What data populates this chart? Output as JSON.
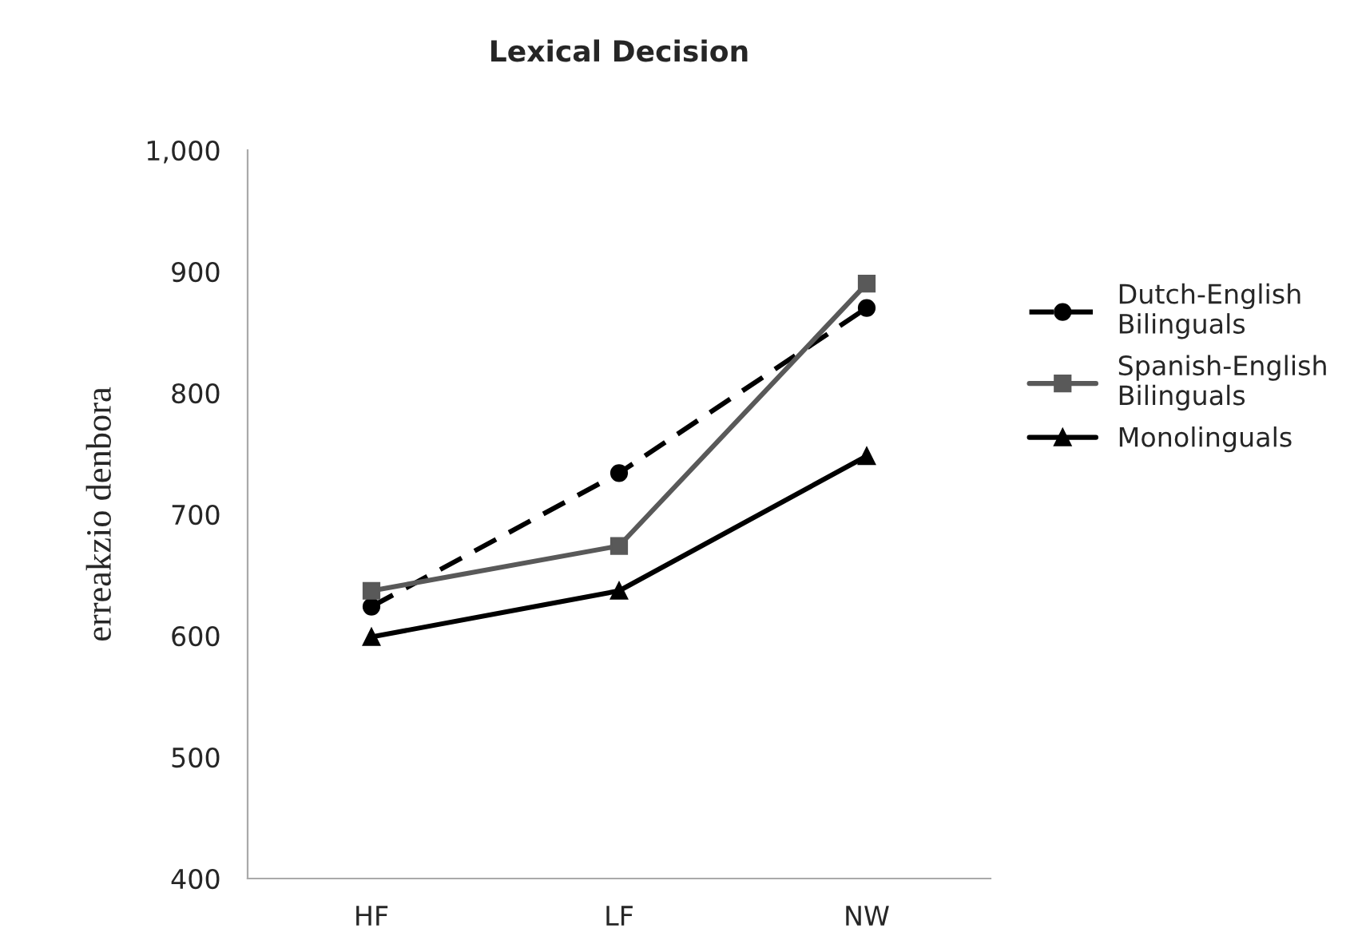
{
  "chart_data": {
    "type": "line",
    "title": "Lexical Decision",
    "ylabel": "erreakzio denbora",
    "categories": [
      "HF",
      "LF",
      "NW"
    ],
    "series": [
      {
        "name": "Dutch-English\nBilinguals",
        "color": "#000000",
        "values": [
          624,
          734,
          870
        ],
        "marker": "circle",
        "line_style": "dashed"
      },
      {
        "name": "Spanish-English\nBilinguals",
        "color": "#595959",
        "values": [
          637,
          674,
          890
        ],
        "marker": "square",
        "line_style": "solid"
      },
      {
        "name": "Monolinguals",
        "color": "#000000",
        "values": [
          599,
          637,
          748
        ],
        "marker": "triangle",
        "line_style": "solid"
      }
    ],
    "ylim": [
      400,
      1000
    ],
    "yticks": [
      400,
      500,
      600,
      700,
      800,
      900,
      {
        "value": 1000,
        "label": "1,000"
      }
    ],
    "grid": false,
    "legend": "right"
  }
}
